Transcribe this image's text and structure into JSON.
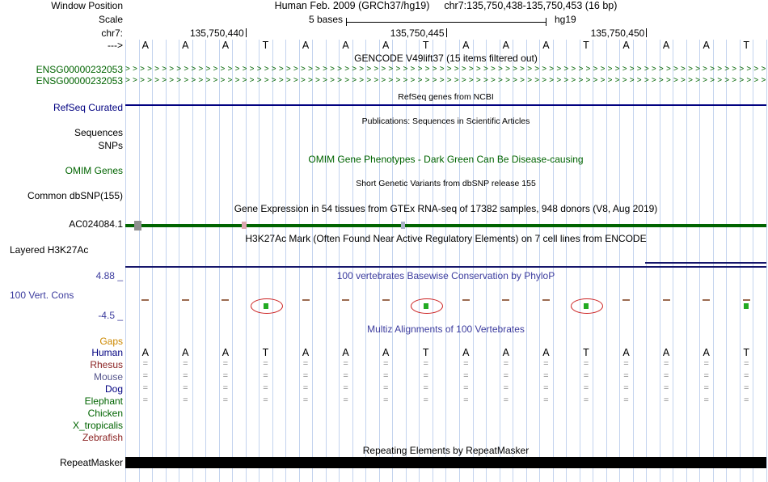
{
  "colors": {
    "guideline": "#c3d3ee",
    "navy": "#000080",
    "green": "#006400",
    "conservation_blue": "#3c3c9e",
    "gaps_orange": "#cc8800",
    "dash_brown": "#9c6b50",
    "cons_green": "#22aa22",
    "cons_red": "#cc2222",
    "h3k27ac_line": "#16166b",
    "repeat_black": "#000000",
    "equals_gray": "#8a8a8a",
    "base_letter": "#000000"
  },
  "header": {
    "window_position_label": "Window Position",
    "assembly_text": "Human Feb. 2009 (GRCh37/hg19)",
    "position_text": "chr7:135,750,438-135,750,453 (16 bp)",
    "scale_label": "Scale",
    "scale_value": "5 bases",
    "genome_label": "hg19",
    "chrom_label": "chr7:",
    "strand_label": "--->",
    "ticks": [
      {
        "label": "135,750,440",
        "boundary": 3
      },
      {
        "label": "135,750,445",
        "boundary": 8
      },
      {
        "label": "135,750,450",
        "boundary": 13
      }
    ]
  },
  "sequence": [
    "A",
    "A",
    "A",
    "T",
    "A",
    "A",
    "A",
    "T",
    "A",
    "A",
    "A",
    "T",
    "A",
    "A",
    "A",
    "T"
  ],
  "tracks": {
    "gencode": {
      "center_label": "GENCODE V49lift37 (15 items filtered out)",
      "items": [
        "ENSG00000232053",
        "ENSG00000232053"
      ]
    },
    "refseq": {
      "center_label": "RefSeq genes from NCBI",
      "label": "RefSeq Curated"
    },
    "publications": {
      "center_label": "Publications: Sequences in Scientific Articles",
      "sequences_label": "Sequences",
      "snps_label": "SNPs"
    },
    "omim": {
      "center_label": "OMIM Gene Phenotypes - Dark Green Can Be Disease-causing",
      "label": "OMIM Genes"
    },
    "dbsnp": {
      "center_label": "Short Genetic Variants from dbSNP release 155",
      "label": "Common dbSNP(155)"
    },
    "gtex": {
      "center_label": "Gene Expression in 54 tissues from GTEx RNA-seq of 17382 samples, 948 donors (V8, Aug 2019)",
      "label": "AC024084.1"
    },
    "h3k27ac": {
      "center_label": "H3K27Ac Mark (Often Found Near Active Regulatory Elements) on 7 cell lines from ENCODE",
      "label": "Layered H3K27Ac"
    },
    "conservation": {
      "center_label": "100 vertebrates Basewise Conservation by PhyloP",
      "label": "100 Vert. Cons",
      "max_value": "4.88 _",
      "min_value": "-4.5 _",
      "negative_bases": [
        3,
        7,
        11,
        15
      ],
      "arc_bases": [
        3,
        7,
        11
      ]
    },
    "multiz": {
      "center_label": "Multiz Alignments of 100 Vertebrates",
      "gaps_label": "Gaps",
      "species": [
        {
          "name": "Human",
          "color": "#000080",
          "row": "letters"
        },
        {
          "name": "Rhesus",
          "color": "#8b2323",
          "row": "equals"
        },
        {
          "name": "Mouse",
          "color": "#55558c",
          "row": "equals"
        },
        {
          "name": "Dog",
          "color": "#000080",
          "row": "equals"
        },
        {
          "name": "Elephant",
          "color": "#006400",
          "row": "equals"
        },
        {
          "name": "Chicken",
          "color": "#006400",
          "row": "none"
        },
        {
          "name": "X_tropicalis",
          "color": "#006400",
          "row": "none"
        },
        {
          "name": "Zebrafish",
          "color": "#8b2323",
          "row": "none"
        }
      ]
    },
    "repeatmasker": {
      "center_label": "Repeating Elements by RepeatMasker",
      "label": "RepeatMasker"
    }
  }
}
